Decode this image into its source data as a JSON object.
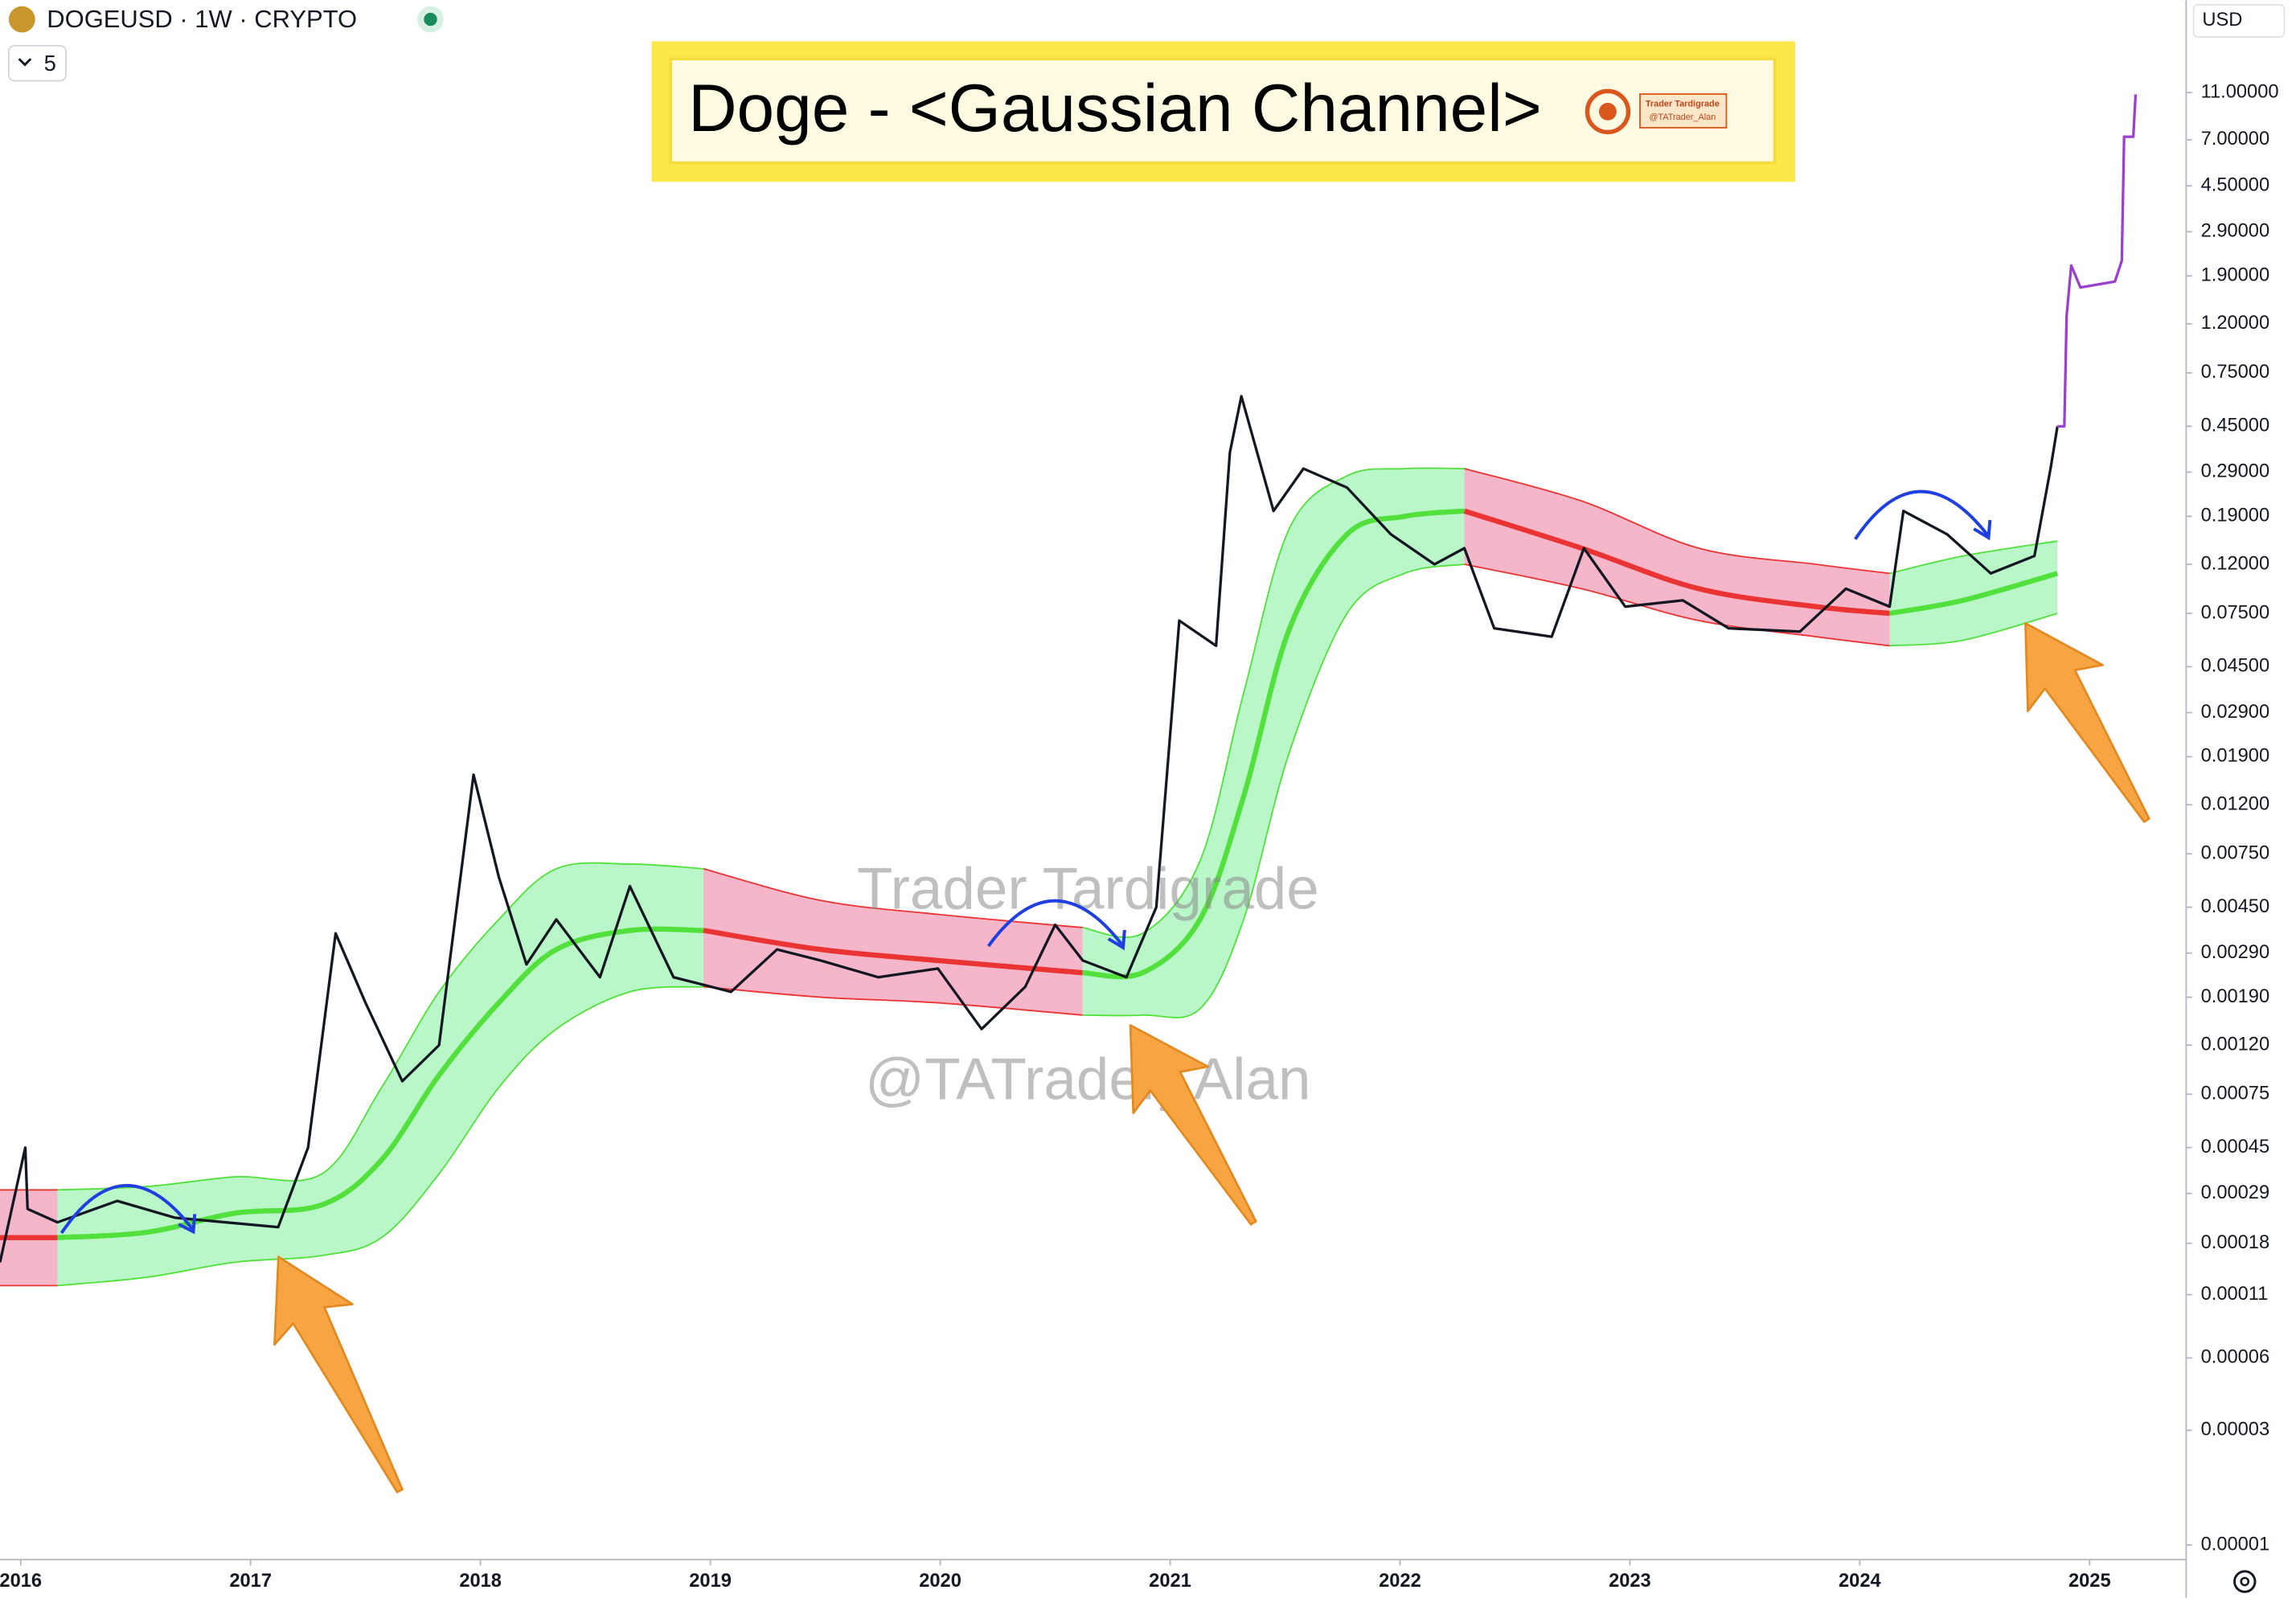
{
  "header": {
    "symbol": "DOGEUSD · 1W · CRYPTO",
    "interval_count": "5",
    "currency": "USD"
  },
  "chart_data": {
    "type": "line",
    "title": "Doge - <Gaussian Channel>",
    "badge": [
      "Trader Tardigrade",
      "@TATrader_Alan"
    ],
    "watermarks": [
      "Trader Tardigrade",
      "@TATrader_Alan"
    ],
    "log_scale": true,
    "xlim": [
      2015.91,
      2025.42
    ],
    "xticks": [
      2016,
      2017,
      2018,
      2019,
      2020,
      2021,
      2022,
      2023,
      2024,
      2025
    ],
    "ylim": [
      8.7e-06,
      26.6
    ],
    "yticks": [
      {
        "value": 11,
        "label": "11.00000"
      },
      {
        "value": 7,
        "label": "7.00000"
      },
      {
        "value": 4.5,
        "label": "4.50000"
      },
      {
        "value": 2.9,
        "label": "2.90000"
      },
      {
        "value": 1.9,
        "label": "1.90000"
      },
      {
        "value": 1.2,
        "label": "1.20000"
      },
      {
        "value": 0.75,
        "label": "0.75000"
      },
      {
        "value": 0.45,
        "label": "0.45000"
      },
      {
        "value": 0.29,
        "label": "0.29000"
      },
      {
        "value": 0.19,
        "label": "0.19000"
      },
      {
        "value": 0.12,
        "label": "0.12000"
      },
      {
        "value": 0.075,
        "label": "0.07500"
      },
      {
        "value": 0.045,
        "label": "0.04500"
      },
      {
        "value": 0.029,
        "label": "0.02900"
      },
      {
        "value": 0.019,
        "label": "0.01900"
      },
      {
        "value": 0.012,
        "label": "0.01200"
      },
      {
        "value": 0.0075,
        "label": "0.00750"
      },
      {
        "value": 0.0045,
        "label": "0.00450"
      },
      {
        "value": 0.0029,
        "label": "0.00290"
      },
      {
        "value": 0.0019,
        "label": "0.00190"
      },
      {
        "value": 0.0012,
        "label": "0.00120"
      },
      {
        "value": 0.00075,
        "label": "0.00075"
      },
      {
        "value": 0.00045,
        "label": "0.00045"
      },
      {
        "value": 0.00029,
        "label": "0.00029"
      },
      {
        "value": 0.00018,
        "label": "0.00018"
      },
      {
        "value": 0.00011,
        "label": "0.00011"
      },
      {
        "value": 6e-05,
        "label": "0.00006"
      },
      {
        "value": 3e-05,
        "label": "0.00003"
      },
      {
        "value": 1e-05,
        "label": "0.00001"
      }
    ],
    "series": [
      {
        "color": "#131722",
        "x": [
          2015.91,
          2016.02,
          2016.03,
          2016.16,
          2016.42,
          2016.67,
          2017.12,
          2017.25,
          2017.37,
          2017.5,
          2017.66,
          2017.82,
          2017.97,
          2018.08,
          2018.2,
          2018.33,
          2018.52,
          2018.65,
          2018.84,
          2019.09,
          2019.29,
          2019.48,
          2019.73,
          2019.99,
          2020.18,
          2020.37,
          2020.5,
          2020.62,
          2020.81,
          2020.94,
          2021.04,
          2021.2,
          2021.26,
          2021.31,
          2021.45,
          2021.58,
          2021.77,
          2021.96,
          2022.15,
          2022.28,
          2022.41,
          2022.66,
          2022.8,
          2022.98,
          2023.23,
          2023.43,
          2023.74,
          2023.94,
          2024.13,
          2024.19,
          2024.38,
          2024.57,
          2024.76,
          2024.83,
          2024.86
        ],
        "values": [
          0.00015,
          0.00045,
          0.00025,
          0.00022,
          0.00027,
          0.00023,
          0.00021,
          0.00045,
          0.0035,
          0.0018,
          0.00085,
          0.0012,
          0.016,
          0.006,
          0.0026,
          0.004,
          0.0023,
          0.0055,
          0.0023,
          0.002,
          0.003,
          0.0027,
          0.0023,
          0.0025,
          0.0014,
          0.0021,
          0.0038,
          0.0027,
          0.0023,
          0.0045,
          0.07,
          0.055,
          0.35,
          0.6,
          0.2,
          0.3,
          0.25,
          0.16,
          0.12,
          0.14,
          0.065,
          0.06,
          0.14,
          0.08,
          0.085,
          0.065,
          0.063,
          0.095,
          0.08,
          0.2,
          0.16,
          0.11,
          0.13,
          0.3,
          0.45
        ]
      },
      {
        "color": "#9a3fd0",
        "x": [
          2024.86,
          2024.89,
          2024.9,
          2024.92,
          2024.96,
          2025.11,
          2025.14,
          2025.15,
          2025.19,
          2025.2
        ],
        "values": [
          0.45,
          0.45,
          1.3,
          2.1,
          1.7,
          1.8,
          2.2,
          7.2,
          7.2,
          10.8
        ]
      }
    ],
    "channel": {
      "up_color": "#52e03c",
      "down_color": "#ea3433",
      "up_fill": "#b9f7c9",
      "down_fill": "#f6b6c9",
      "x": [
        2015.91,
        2016.16,
        2016.55,
        2016.93,
        2017.31,
        2017.57,
        2017.82,
        2018.08,
        2018.33,
        2018.65,
        2018.97,
        2019.48,
        2019.99,
        2020.62,
        2020.88,
        2021.13,
        2021.32,
        2021.52,
        2021.77,
        2022.02,
        2022.28,
        2022.79,
        2023.3,
        2023.81,
        2024.13,
        2024.45,
        2024.86
      ],
      "mid": [
        0.00019,
        0.00019,
        0.0002,
        0.00024,
        0.00026,
        0.0004,
        0.0009,
        0.0018,
        0.003,
        0.0036,
        0.0036,
        0.003,
        0.0027,
        0.0024,
        0.0024,
        0.004,
        0.013,
        0.065,
        0.16,
        0.19,
        0.2,
        0.14,
        0.095,
        0.08,
        0.075,
        0.085,
        0.11
      ],
      "upper": [
        0.0003,
        0.0003,
        0.00031,
        0.00034,
        0.00035,
        0.0008,
        0.002,
        0.004,
        0.0065,
        0.0068,
        0.0065,
        0.0048,
        0.0042,
        0.0037,
        0.0035,
        0.007,
        0.035,
        0.17,
        0.28,
        0.3,
        0.3,
        0.22,
        0.14,
        0.12,
        0.11,
        0.13,
        0.15
      ],
      "lower": [
        0.00012,
        0.00012,
        0.00013,
        0.00015,
        0.00016,
        0.00019,
        0.00035,
        0.0008,
        0.0014,
        0.002,
        0.0021,
        0.0019,
        0.0018,
        0.0016,
        0.0016,
        0.0017,
        0.004,
        0.02,
        0.075,
        0.11,
        0.12,
        0.095,
        0.07,
        0.06,
        0.055,
        0.058,
        0.075
      ],
      "trend": [
        "down",
        "up",
        "up",
        "up",
        "up",
        "up",
        "up",
        "up",
        "up",
        "up",
        "down",
        "down",
        "down",
        "up",
        "up",
        "up",
        "up",
        "up",
        "up",
        "up",
        "down",
        "down",
        "down",
        "down",
        "up",
        "up",
        "up"
      ]
    }
  }
}
